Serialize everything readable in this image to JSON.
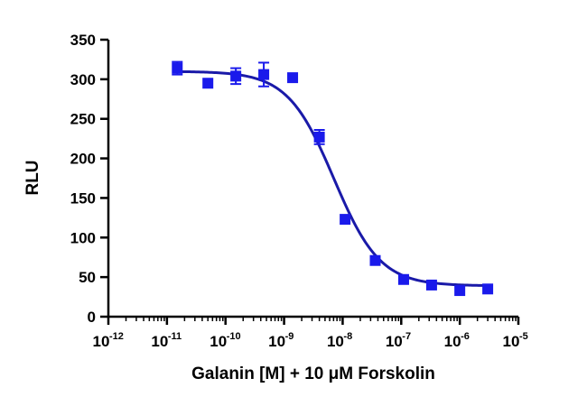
{
  "chart_data": {
    "type": "scatter",
    "title": "",
    "xlabel": "Galanin [M] + 10 μM Forskolin",
    "ylabel": "RLU",
    "x_scale": "log",
    "xlim": [
      1e-12,
      1e-05
    ],
    "ylim": [
      0,
      350
    ],
    "grid": false,
    "legend": "none",
    "x_ticks": [
      1e-12,
      1e-11,
      1e-10,
      1e-09,
      1e-08,
      1e-07,
      1e-06,
      1e-05
    ],
    "x_tick_labels": [
      {
        "base": "10",
        "exp": "-12"
      },
      {
        "base": "10",
        "exp": "-11"
      },
      {
        "base": "10",
        "exp": "-10"
      },
      {
        "base": "10",
        "exp": "-9"
      },
      {
        "base": "10",
        "exp": "-8"
      },
      {
        "base": "10",
        "exp": "-7"
      },
      {
        "base": "10",
        "exp": "-6"
      },
      {
        "base": "10",
        "exp": "-5"
      }
    ],
    "y_ticks": [
      0,
      50,
      100,
      150,
      200,
      250,
      300,
      350
    ],
    "y_tick_labels": [
      "0",
      "50",
      "100",
      "150",
      "200",
      "250",
      "300",
      "350"
    ],
    "color": "#1a1aeb",
    "curve_color": "#1a1aa8",
    "series": [
      {
        "marker": "square",
        "points": [
          {
            "x": 1.5e-11,
            "y": 314,
            "err": 8
          },
          {
            "x": 5e-11,
            "y": 295,
            "err": 0
          },
          {
            "x": 1.5e-10,
            "y": 304,
            "err": 10
          },
          {
            "x": 4.5e-10,
            "y": 306,
            "err": 15
          },
          {
            "x": 1.4e-09,
            "y": 302,
            "err": 0
          },
          {
            "x": 4e-09,
            "y": 227,
            "err": 9
          },
          {
            "x": 1.1e-08,
            "y": 123,
            "err": 0
          },
          {
            "x": 3.6e-08,
            "y": 71,
            "err": 0
          },
          {
            "x": 1.1e-07,
            "y": 47,
            "err": 0
          },
          {
            "x": 3.3e-07,
            "y": 40,
            "err": 0
          },
          {
            "x": 1e-06,
            "y": 33,
            "err": 0
          },
          {
            "x": 3e-06,
            "y": 35,
            "err": 0
          }
        ]
      }
    ],
    "fit": {
      "model": "four-parameter logistic",
      "top": 310,
      "bottom": 39,
      "log_ec50": -8.15,
      "hill": -1.1,
      "x_range": [
        1.5e-11,
        3e-06
      ]
    }
  }
}
